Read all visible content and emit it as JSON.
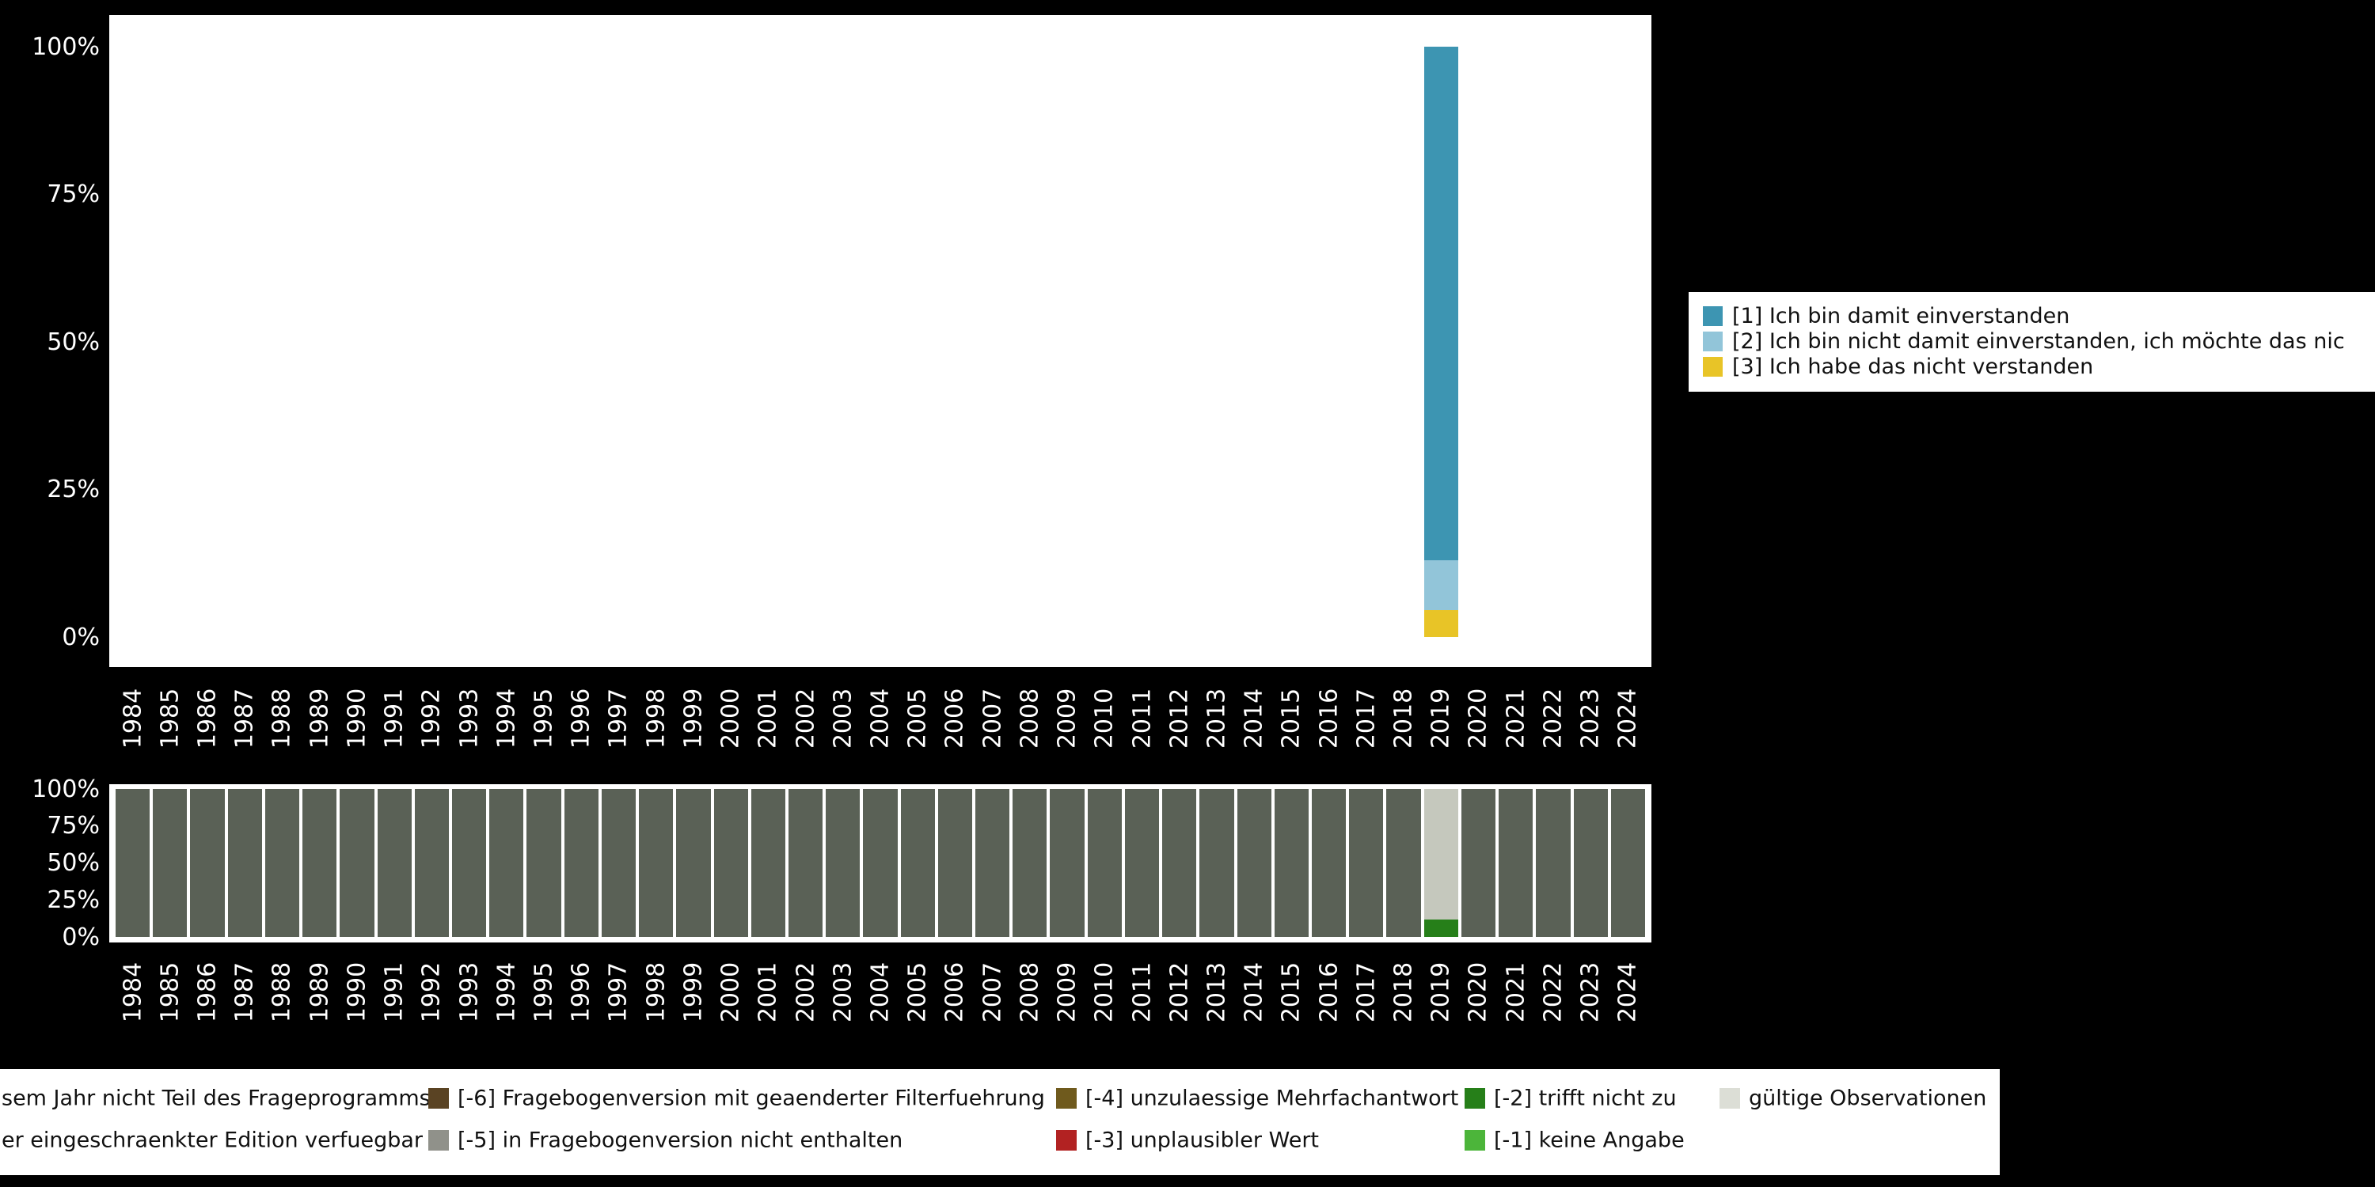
{
  "chart_data": [
    {
      "id": "distribution",
      "type": "bar",
      "stacked": true,
      "title": "",
      "xlabel": "",
      "ylabel": "",
      "ylim": [
        0,
        100
      ],
      "grid": false,
      "yticks": [
        "100%",
        "75%",
        "50%",
        "25%",
        "0%"
      ],
      "categories": [
        "1984",
        "1985",
        "1986",
        "1987",
        "1988",
        "1989",
        "1990",
        "1991",
        "1992",
        "1993",
        "1994",
        "1995",
        "1996",
        "1997",
        "1998",
        "1999",
        "2000",
        "2001",
        "2002",
        "2003",
        "2004",
        "2005",
        "2006",
        "2007",
        "2008",
        "2009",
        "2010",
        "2011",
        "2012",
        "2013",
        "2014",
        "2015",
        "2016",
        "2017",
        "2018",
        "2019",
        "2020",
        "2021",
        "2022",
        "2023",
        "2024"
      ],
      "series": [
        {
          "name": "[3] Ich habe das nicht verstanden",
          "color": "#e8c427",
          "values": [
            0,
            0,
            0,
            0,
            0,
            0,
            0,
            0,
            0,
            0,
            0,
            0,
            0,
            0,
            0,
            0,
            0,
            0,
            0,
            0,
            0,
            0,
            0,
            0,
            0,
            0,
            0,
            0,
            0,
            0,
            0,
            0,
            0,
            0,
            0,
            4.5,
            0,
            0,
            0,
            0,
            0
          ]
        },
        {
          "name": "[2] Ich bin nicht damit einverstanden, ich möchte das nic",
          "color": "#92c5d9",
          "values": [
            0,
            0,
            0,
            0,
            0,
            0,
            0,
            0,
            0,
            0,
            0,
            0,
            0,
            0,
            0,
            0,
            0,
            0,
            0,
            0,
            0,
            0,
            0,
            0,
            0,
            0,
            0,
            0,
            0,
            0,
            0,
            0,
            0,
            0,
            0,
            8.5,
            0,
            0,
            0,
            0,
            0
          ]
        },
        {
          "name": "[1] Ich bin damit einverstanden",
          "color": "#3d95b2",
          "values": [
            0,
            0,
            0,
            0,
            0,
            0,
            0,
            0,
            0,
            0,
            0,
            0,
            0,
            0,
            0,
            0,
            0,
            0,
            0,
            0,
            0,
            0,
            0,
            0,
            0,
            0,
            0,
            0,
            0,
            0,
            0,
            0,
            0,
            0,
            0,
            87,
            0,
            0,
            0,
            0,
            0
          ]
        }
      ],
      "legend_position": "right"
    },
    {
      "id": "missing-codes",
      "type": "bar",
      "stacked": true,
      "title": "",
      "xlabel": "",
      "ylabel": "",
      "ylim": [
        0,
        100
      ],
      "grid": false,
      "yticks": [
        "100%",
        "75%",
        "50%",
        "25%",
        "0%"
      ],
      "categories": [
        "1984",
        "1985",
        "1986",
        "1987",
        "1988",
        "1989",
        "1990",
        "1991",
        "1992",
        "1993",
        "1994",
        "1995",
        "1996",
        "1997",
        "1998",
        "1999",
        "2000",
        "2001",
        "2002",
        "2003",
        "2004",
        "2005",
        "2006",
        "2007",
        "2008",
        "2009",
        "2010",
        "2011",
        "2012",
        "2013",
        "2014",
        "2015",
        "2016",
        "2017",
        "2018",
        "2019",
        "2020",
        "2021",
        "2022",
        "2023",
        "2024"
      ],
      "series": [
        {
          "name": "[-2] trifft nicht zu",
          "color": "#267f19",
          "values": [
            0,
            0,
            0,
            0,
            0,
            0,
            0,
            0,
            0,
            0,
            0,
            0,
            0,
            0,
            0,
            0,
            0,
            0,
            0,
            0,
            0,
            0,
            0,
            0,
            0,
            0,
            0,
            0,
            0,
            0,
            0,
            0,
            0,
            0,
            0,
            12,
            0,
            0,
            0,
            0,
            0
          ]
        },
        {
          "name": "gültige Observationen",
          "color": "#c5c8bd",
          "values": [
            0,
            0,
            0,
            0,
            0,
            0,
            0,
            0,
            0,
            0,
            0,
            0,
            0,
            0,
            0,
            0,
            0,
            0,
            0,
            0,
            0,
            0,
            0,
            0,
            0,
            0,
            0,
            0,
            0,
            0,
            0,
            0,
            0,
            0,
            0,
            88,
            0,
            0,
            0,
            0,
            0
          ]
        },
        {
          "name": "sem Jahr nicht Teil des Frageprogramms",
          "color": "#5a6156",
          "values": [
            100,
            100,
            100,
            100,
            100,
            100,
            100,
            100,
            100,
            100,
            100,
            100,
            100,
            100,
            100,
            100,
            100,
            100,
            100,
            100,
            100,
            100,
            100,
            100,
            100,
            100,
            100,
            100,
            100,
            100,
            100,
            100,
            100,
            100,
            100,
            0,
            100,
            100,
            100,
            100,
            100
          ]
        }
      ],
      "legend_position": "bottom"
    }
  ],
  "legend_top": {
    "items": [
      {
        "label": "[1] Ich bin damit einverstanden",
        "color": "#3d95b2"
      },
      {
        "label": "[2] Ich bin nicht damit einverstanden, ich möchte das nic",
        "color": "#92c5d9"
      },
      {
        "label": "[3] Ich habe das nicht verstanden",
        "color": "#e8c427"
      }
    ]
  },
  "legend_bottom": {
    "rows": [
      [
        {
          "label": "sem Jahr nicht Teil des Frageprogramms",
          "color": null
        },
        {
          "label": "[-6] Fragebogenversion mit geaenderter Filterfuehrung",
          "color": "#5a4323"
        },
        {
          "label": "[-4] unzulaessige Mehrfachantwort",
          "color": "#6f5a1d"
        },
        {
          "label": "[-2] trifft nicht zu",
          "color": "#267f19"
        },
        {
          "label": "gültige Observationen",
          "color": "#dcded6"
        }
      ],
      [
        {
          "label": "er eingeschraenkter Edition verfuegbar",
          "color": null
        },
        {
          "label": "[-5] in Fragebogenversion nicht enthalten",
          "color": "#90918a"
        },
        {
          "label": "[-3] unplausibler Wert",
          "color": "#b22222"
        },
        {
          "label": "[-1] keine Angabe",
          "color": "#4cb53a"
        },
        null
      ]
    ]
  },
  "colors": {
    "background": "#000000",
    "plot_background": "#ffffff",
    "axis_text": "#ffffff"
  }
}
